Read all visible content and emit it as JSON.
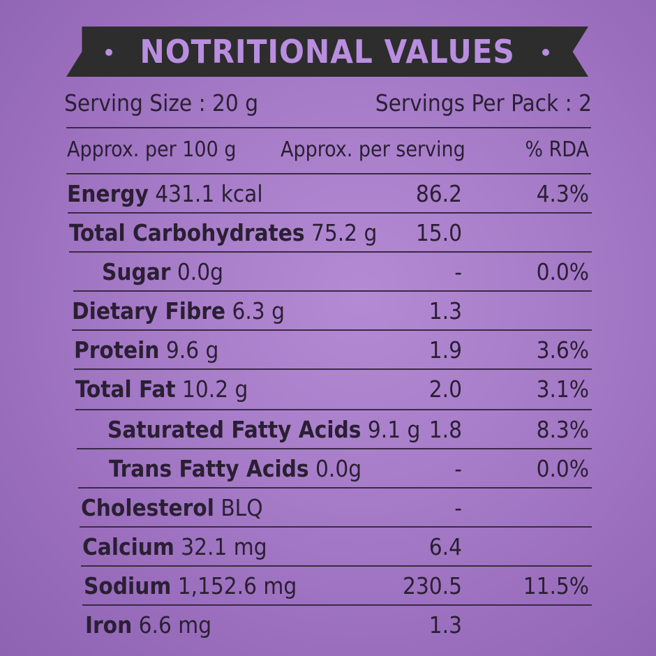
{
  "title": "NOTRITIONAL VALUES",
  "serving_size": "Serving Size : 20 g",
  "servings_per_pack": "Servings Per Pack : 2",
  "columns": {
    "per100": "Approx. per 100 g",
    "per_serving": "Approx. per serving",
    "rda": "% RDA"
  },
  "rows": [
    {
      "name": "Energy",
      "qty": "431.1 kcal",
      "serving": "86.2",
      "rda": "4.3%"
    },
    {
      "name": "Total Carbohydrates",
      "qty": "75.2 g",
      "serving": "15.0",
      "rda": ""
    },
    {
      "name": "Sugar",
      "qty": "0.0g",
      "serving": "-",
      "rda": "0.0%"
    },
    {
      "name": "Dietary Fibre",
      "qty": "6.3 g",
      "serving": "1.3",
      "rda": ""
    },
    {
      "name": "Protein",
      "qty": "9.6 g",
      "serving": "1.9",
      "rda": "3.6%"
    },
    {
      "name": "Total Fat",
      "qty": "10.2 g",
      "serving": "2.0",
      "rda": "3.1%"
    },
    {
      "name": "Saturated Fatty Acids",
      "qty": "9.1 g",
      "serving": "1.8",
      "rda": "8.3%"
    },
    {
      "name": "Trans Fatty Acids",
      "qty": "0.0g",
      "serving": "-",
      "rda": "0.0%"
    },
    {
      "name": "Cholesterol",
      "qty": "BLQ",
      "serving": "-",
      "rda": ""
    },
    {
      "name": "Calcium",
      "qty": "32.1 mg",
      "serving": "6.4",
      "rda": ""
    },
    {
      "name": "Sodium",
      "qty": "1,152.6 mg",
      "serving": "230.5",
      "rda": "11.5%"
    },
    {
      "name": "Iron",
      "qty": "6.6 mg",
      "serving": "1.3",
      "rda": ""
    }
  ],
  "colors": {
    "background": "#a67cc8",
    "banner": "#2d2d2d",
    "banner_text": "#b98ee0",
    "text": "#2a1f33"
  }
}
